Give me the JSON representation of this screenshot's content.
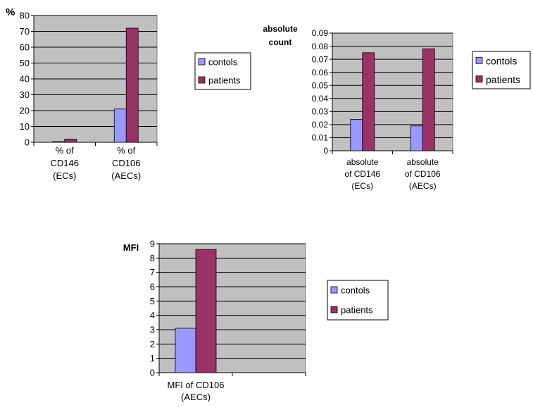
{
  "chart_data": [
    {
      "type": "bar",
      "ylabel": "%",
      "ylim": [
        0,
        80
      ],
      "yticks": [
        0,
        10,
        20,
        30,
        40,
        50,
        60,
        70,
        80
      ],
      "grid": true,
      "legend": "right",
      "categories": [
        [
          "% of",
          "CD146",
          "(ECs)"
        ],
        [
          "% of",
          "CD106",
          "(AECs)"
        ]
      ],
      "series": [
        {
          "name": "contols",
          "color": "#9999ff",
          "values": [
            0.5,
            21
          ]
        },
        {
          "name": "patients",
          "color": "#993366",
          "values": [
            2,
            72
          ]
        }
      ]
    },
    {
      "type": "bar",
      "ylabel": [
        "absolute",
        "count"
      ],
      "ylim": [
        0,
        0.09
      ],
      "yticks": [
        "0",
        "0.01",
        "0.02",
        "0.03",
        "0.04",
        "0.05",
        "0.06",
        "0.07",
        "0.08",
        "0.09"
      ],
      "grid": true,
      "legend": "right",
      "categories": [
        [
          "absolute",
          "of CD146",
          "(ECs)"
        ],
        [
          "absolute",
          "of CD106",
          "(AECs)"
        ]
      ],
      "series": [
        {
          "name": "contols",
          "color": "#9999ff",
          "values": [
            0.024,
            0.019
          ]
        },
        {
          "name": "patients",
          "color": "#993366",
          "values": [
            0.075,
            0.078
          ]
        }
      ]
    },
    {
      "type": "bar",
      "ylabel": "MFI",
      "ylim": [
        0,
        9
      ],
      "yticks": [
        0,
        1,
        2,
        3,
        4,
        5,
        6,
        7,
        8,
        9
      ],
      "grid": true,
      "legend": "right",
      "categories": [
        [
          "MFI of CD106",
          "(AECs)"
        ]
      ],
      "series": [
        {
          "name": "contols",
          "color": "#9999ff",
          "values": [
            3.1
          ]
        },
        {
          "name": "patients",
          "color": "#993366",
          "values": [
            8.6
          ]
        }
      ]
    }
  ]
}
